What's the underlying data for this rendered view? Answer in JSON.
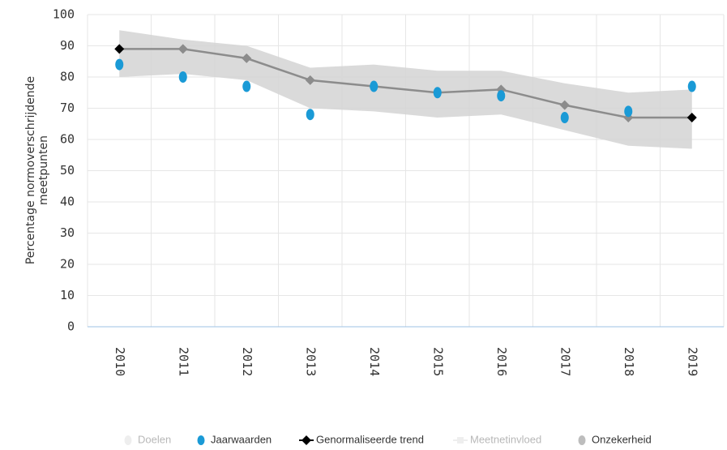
{
  "chart_data": {
    "type": "line",
    "y_label": [
      "Percentage normoverschrijdende",
      "meetpunten"
    ],
    "categories": [
      "2010",
      "2011",
      "2012",
      "2013",
      "2014",
      "2015",
      "2016",
      "2017",
      "2018",
      "2019"
    ],
    "series": [
      {
        "name": "Jaarwaarden",
        "kind": "points",
        "color": "#1a9ad6",
        "values": [
          84,
          80,
          77,
          68,
          77,
          75,
          74,
          67,
          69,
          77
        ]
      },
      {
        "name": "Genormaliseerde trend",
        "kind": "line",
        "color": "#000000",
        "line_color": "#8c8c8c",
        "values": [
          89,
          89,
          86,
          79,
          77,
          75,
          76,
          71,
          67,
          67
        ]
      },
      {
        "name": "Onzekerheid",
        "kind": "band",
        "color": "#d3d3d3",
        "upper": [
          95,
          92,
          90,
          83,
          84,
          82,
          82,
          78,
          75,
          76
        ],
        "lower": [
          80,
          81,
          79,
          70,
          69,
          67,
          68,
          63,
          58,
          57
        ]
      }
    ],
    "legend": [
      {
        "name": "Doelen",
        "symbol": "circle",
        "color": "#d0d0d0",
        "hidden": true
      },
      {
        "name": "Jaarwaarden",
        "symbol": "circle",
        "color": "#1a9ad6",
        "hidden": false
      },
      {
        "name": "Genormaliseerde trend",
        "symbol": "diamond-line",
        "color": "#000000",
        "hidden": false
      },
      {
        "name": "Meetnetinvloed",
        "symbol": "square-line",
        "color": "#d0d0d0",
        "hidden": true
      },
      {
        "name": "Onzekerheid",
        "symbol": "circle",
        "color": "#bdbdbd",
        "hidden": false
      }
    ],
    "ylim": [
      0,
      100
    ],
    "yticks": [
      0,
      10,
      20,
      30,
      40,
      50,
      60,
      70,
      80,
      90,
      100
    ],
    "grid": true
  }
}
